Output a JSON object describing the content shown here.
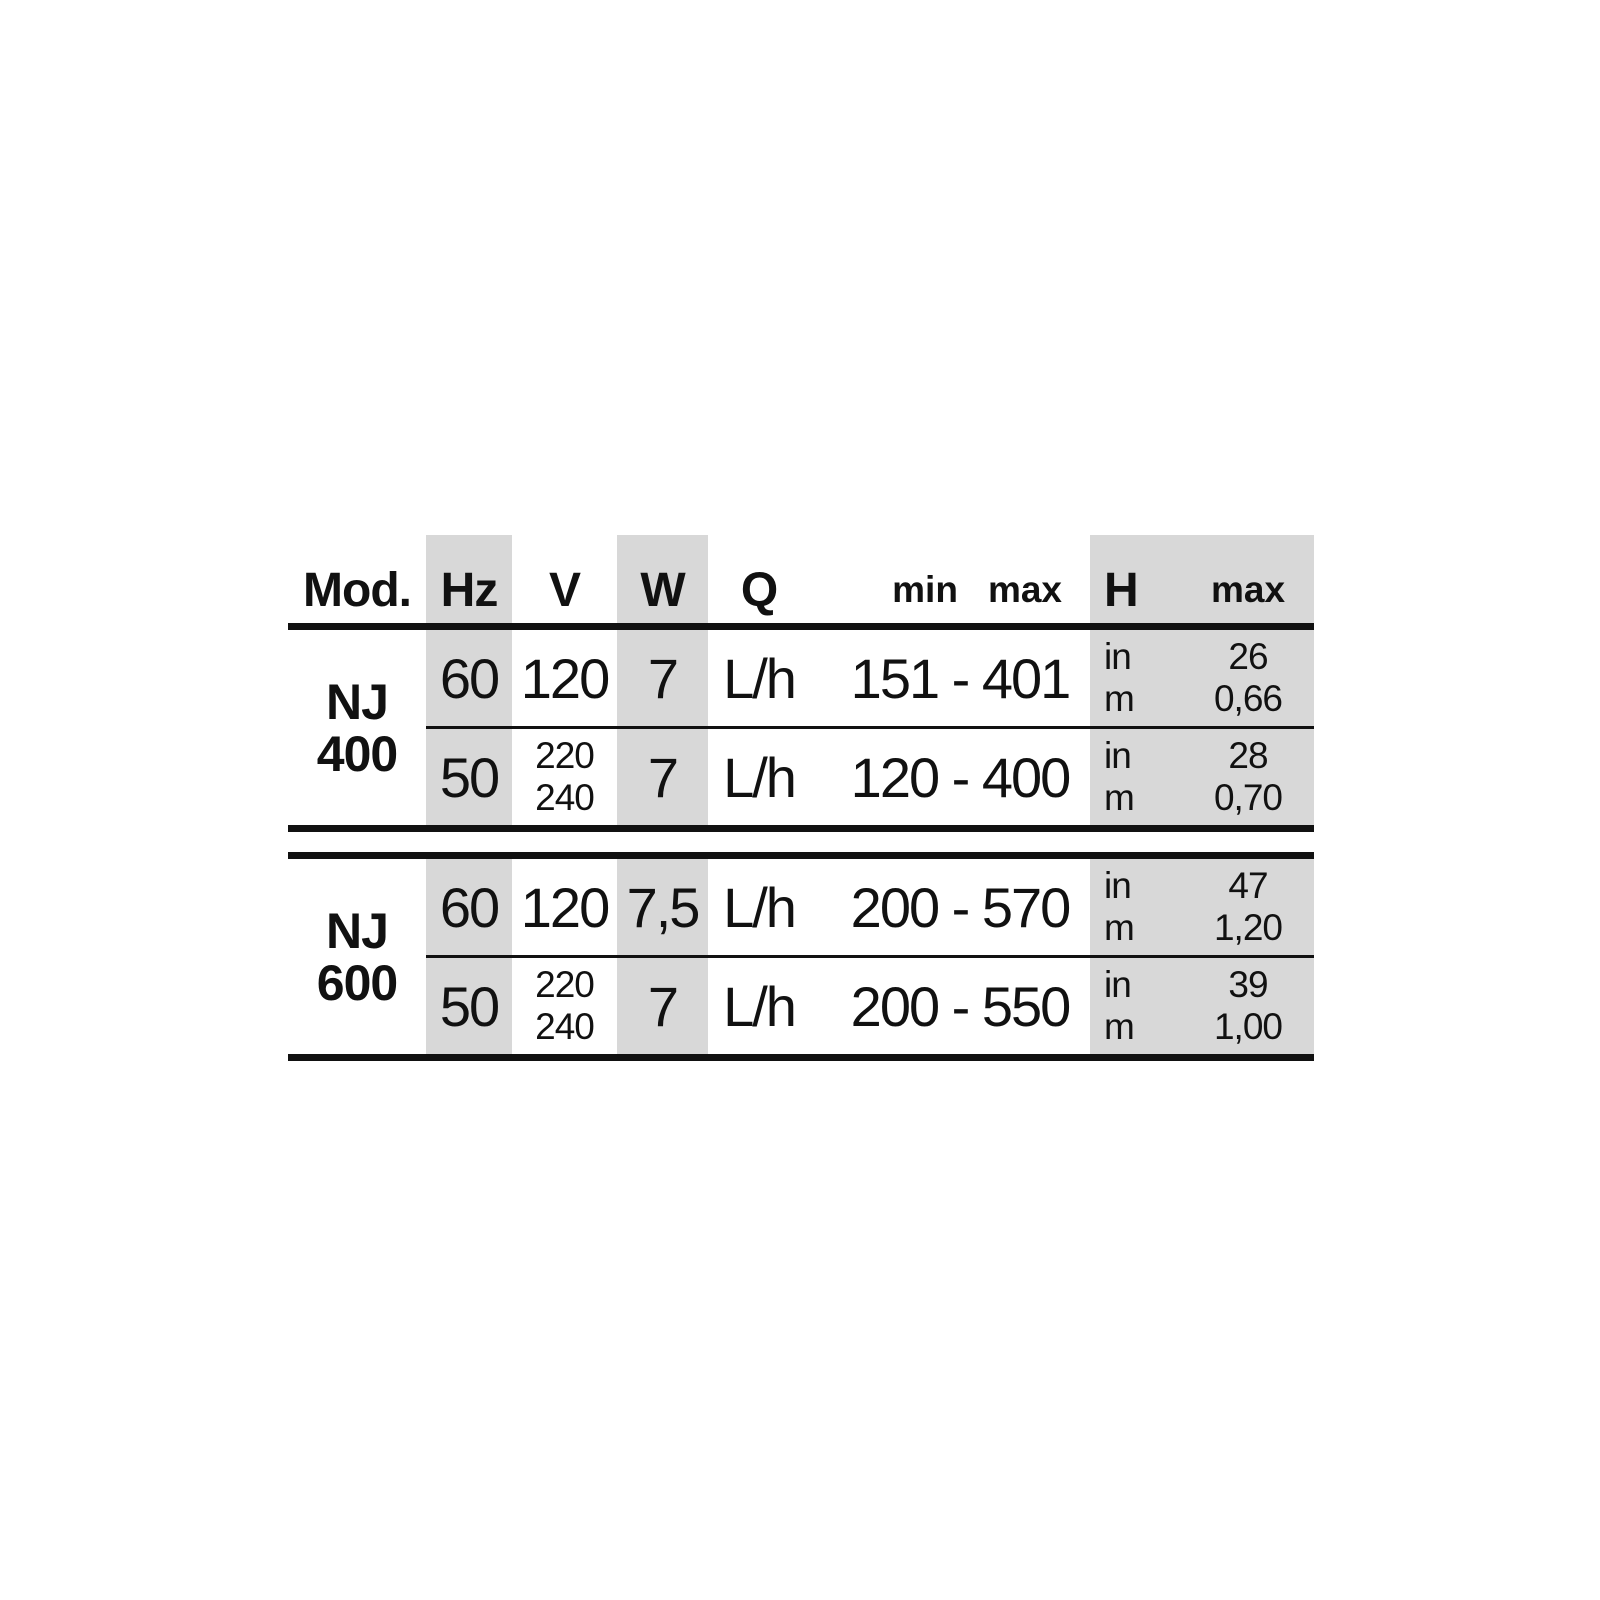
{
  "table": {
    "headers": {
      "mod": "Mod.",
      "hz": "Hz",
      "v": "V",
      "w": "W",
      "q": "Q",
      "min": "min",
      "max": "max",
      "h": "H",
      "h_max": "max"
    },
    "sections": [
      {
        "model": [
          "NJ",
          "400"
        ],
        "rows": [
          {
            "hz": "60",
            "v": [
              "120"
            ],
            "w": "7",
            "q": "L/h",
            "range": "151 - 401",
            "h_units": [
              "in",
              "m"
            ],
            "h_values": [
              "26",
              "0,66"
            ]
          },
          {
            "hz": "50",
            "v": [
              "220",
              "240"
            ],
            "w": "7",
            "q": "L/h",
            "range": "120 - 400",
            "h_units": [
              "in",
              "m"
            ],
            "h_values": [
              "28",
              "0,70"
            ]
          }
        ]
      },
      {
        "model": [
          "NJ",
          "600"
        ],
        "rows": [
          {
            "hz": "60",
            "v": [
              "120"
            ],
            "w": "7,5",
            "q": "L/h",
            "range": "200 - 570",
            "h_units": [
              "in",
              "m"
            ],
            "h_values": [
              "47",
              "1,20"
            ]
          },
          {
            "hz": "50",
            "v": [
              "220",
              "240"
            ],
            "w": "7",
            "q": "L/h",
            "range": "200 - 550",
            "h_units": [
              "in",
              "m"
            ],
            "h_values": [
              "39",
              "1,00"
            ]
          }
        ]
      }
    ],
    "colors": {
      "band": "#d8d8d8",
      "ink": "#111111"
    }
  }
}
